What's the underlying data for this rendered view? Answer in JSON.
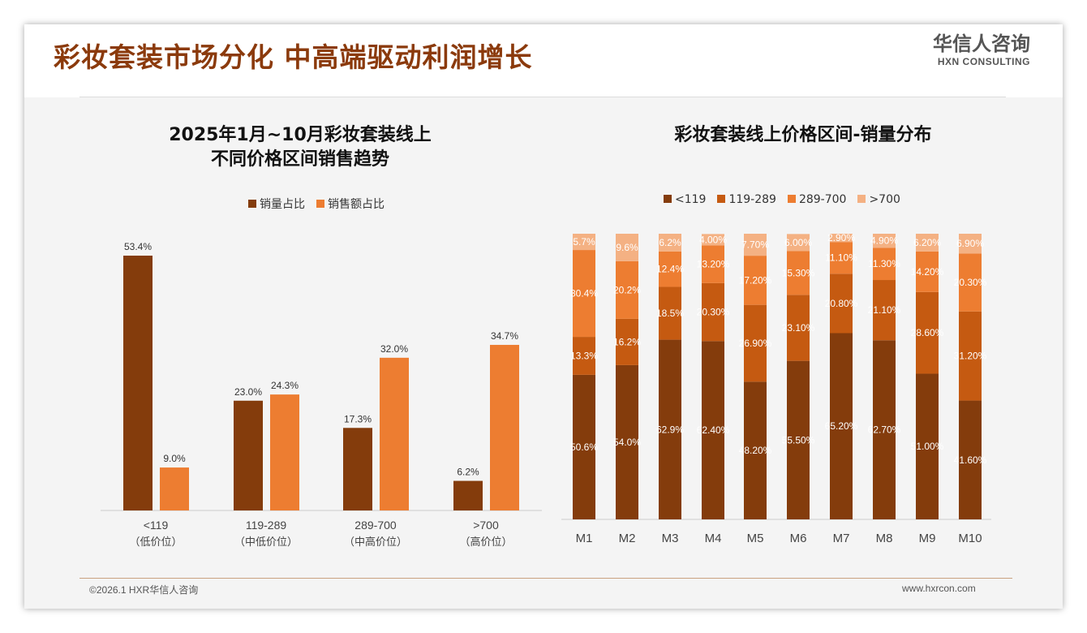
{
  "header": {
    "title": "彩妆套装市场分化 中高端驱动利润增长",
    "logo_cn": "华信人咨询",
    "logo_en": "HXN CONSULTING"
  },
  "footer": {
    "copyright": "©2026.1 HXR华信人咨询",
    "url": "www.hxrcon.com"
  },
  "colors": {
    "dark": "#843c0c",
    "mid": "#c55a11",
    "orange": "#ed7d31",
    "light": "#f4b183"
  },
  "chart_data": [
    {
      "type": "bar",
      "title": "2025年1月~10月彩妆套装线上不同价格区间销售趋势",
      "title_lines": [
        "2025年1月~10月彩妆套装线上",
        "不同价格区间销售趋势"
      ],
      "categories": [
        "<119",
        "119-289",
        "289-700",
        ">700"
      ],
      "sublabels": [
        "（低价位）",
        "（中低价位）",
        "（中高价位）",
        "（高价位）"
      ],
      "series": [
        {
          "name": "销量占比",
          "values": [
            53.4,
            23.0,
            17.3,
            6.2
          ]
        },
        {
          "name": "销售额占比",
          "values": [
            9.0,
            24.3,
            32.0,
            34.7
          ]
        }
      ],
      "unit": "%",
      "legend": "top"
    },
    {
      "type": "bar",
      "stacked": true,
      "title": "彩妆套装线上价格区间-销量分布",
      "categories": [
        "M1",
        "M2",
        "M3",
        "M4",
        "M5",
        "M6",
        "M7",
        "M8",
        "M9",
        "M10"
      ],
      "series": [
        {
          "name": "<119",
          "values": [
            50.6,
            54.0,
            62.9,
            62.4,
            48.2,
            55.5,
            65.2,
            62.7,
            51.0,
            41.6
          ],
          "labels": [
            "50.6%",
            "54.0%",
            "62.9%",
            "62.40%",
            "48.20%",
            "55.50%",
            "65.20%",
            "62.70%",
            "51.00%",
            "41.60%"
          ]
        },
        {
          "name": "119-289",
          "values": [
            13.3,
            16.2,
            18.5,
            20.3,
            26.9,
            23.1,
            20.8,
            21.1,
            28.6,
            31.2
          ],
          "labels": [
            "13.3%",
            "16.2%",
            "18.5%",
            "20.30%",
            "26.90%",
            "23.10%",
            "20.80%",
            "21.10%",
            "28.60%",
            "31.20%"
          ]
        },
        {
          "name": "289-700",
          "values": [
            30.4,
            20.2,
            12.4,
            13.2,
            17.2,
            15.3,
            11.1,
            11.3,
            14.2,
            20.3
          ],
          "labels": [
            "30.4%",
            "20.2%",
            "12.4%",
            "13.20%",
            "17.20%",
            "15.30%",
            "11.10%",
            "11.30%",
            "14.20%",
            "20.30%"
          ]
        },
        {
          "name": ">700",
          "values": [
            5.7,
            9.6,
            6.2,
            4.0,
            7.7,
            6.0,
            2.9,
            4.9,
            6.2,
            6.9
          ],
          "labels": [
            "5.7%",
            "9.6%",
            "6.2%",
            "4.00%",
            "7.70%",
            "6.00%",
            "2.90%",
            "4.90%",
            "6.20%",
            "6.90%"
          ]
        }
      ],
      "unit": "%",
      "legend": "top"
    }
  ]
}
